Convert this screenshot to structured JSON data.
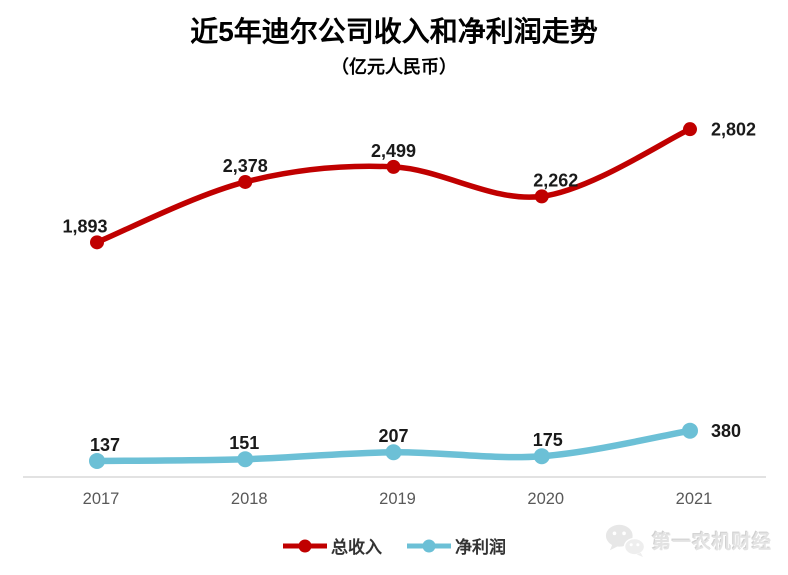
{
  "chart_data": {
    "type": "line",
    "title": "近5年迪尔公司收入和净利润走势",
    "subtitle": "（亿元人民币）",
    "categories": [
      "2017",
      "2018",
      "2019",
      "2020",
      "2021"
    ],
    "series": [
      {
        "name": "总收入",
        "color": "#C00000",
        "values": [
          1893,
          2378,
          2499,
          2262,
          2802
        ],
        "labels": [
          "1,893",
          "2,378",
          "2,499",
          "2,262",
          "2,802"
        ]
      },
      {
        "name": "净利润",
        "color": "#6CC0D6",
        "values": [
          137,
          151,
          207,
          175,
          380
        ],
        "labels": [
          "137",
          "151",
          "207",
          "175",
          "380"
        ]
      }
    ],
    "xlabel": "",
    "ylabel": "",
    "ylim": [
      0,
      2900
    ],
    "grid": false,
    "smooth": true,
    "markers": true,
    "data_labels": true,
    "legend_position": "bottom",
    "axis_color": "#D9D9D9",
    "tick_color": "#595959",
    "label_color": "#1A1A1A"
  },
  "watermark": {
    "text": "第一农机财经",
    "icon": "wechat-icon"
  }
}
